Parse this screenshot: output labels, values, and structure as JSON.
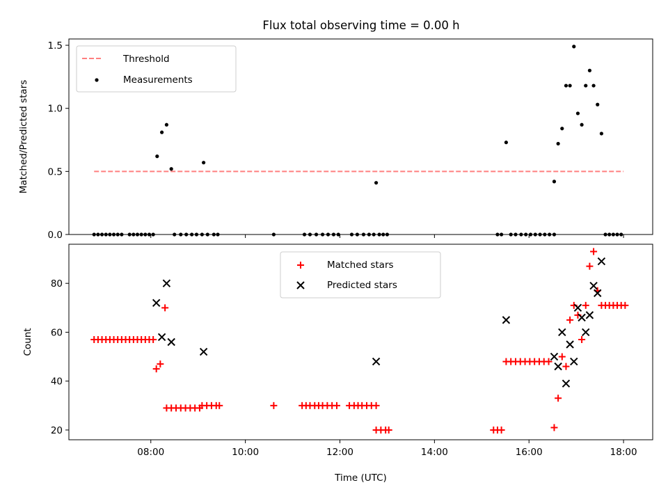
{
  "title": "Flux total observing time = 0.00 h",
  "chart_data": [
    {
      "type": "scatter",
      "ylabel": "Matched/Predicted stars",
      "ylim": [
        0,
        1.55
      ],
      "yticks": [
        0,
        0.5,
        1.0,
        1.5
      ],
      "ytick_labels": [
        "0.0",
        "0.5",
        "1.0",
        "1.5"
      ],
      "legend_position": "top-left",
      "threshold": {
        "name": "Threshold",
        "value": 0.5,
        "x_start": "06:48",
        "x_end": "18:00",
        "color": "#ff7f7f"
      },
      "series": [
        {
          "name": "Measurements",
          "color": "#000000",
          "marker": "dot",
          "points": [
            [
              "06:48",
              0
            ],
            [
              "06:53",
              0
            ],
            [
              "06:58",
              0
            ],
            [
              "07:03",
              0
            ],
            [
              "07:08",
              0
            ],
            [
              "07:13",
              0
            ],
            [
              "07:18",
              0
            ],
            [
              "07:23",
              0
            ],
            [
              "07:33",
              0
            ],
            [
              "07:38",
              0
            ],
            [
              "07:43",
              0
            ],
            [
              "07:48",
              0
            ],
            [
              "07:53",
              0
            ],
            [
              "07:58",
              0
            ],
            [
              "08:03",
              0
            ],
            [
              "08:08",
              0.62
            ],
            [
              "08:14",
              0.81
            ],
            [
              "08:20",
              0.87
            ],
            [
              "08:26",
              0.52
            ],
            [
              "08:30",
              0
            ],
            [
              "08:38",
              0
            ],
            [
              "08:45",
              0
            ],
            [
              "08:52",
              0
            ],
            [
              "08:58",
              0
            ],
            [
              "09:05",
              0
            ],
            [
              "09:12",
              0
            ],
            [
              "09:20",
              0
            ],
            [
              "09:25",
              0
            ],
            [
              "09:07",
              0.57
            ],
            [
              "10:36",
              0
            ],
            [
              "11:15",
              0
            ],
            [
              "11:22",
              0
            ],
            [
              "11:30",
              0
            ],
            [
              "11:38",
              0
            ],
            [
              "11:45",
              0
            ],
            [
              "11:52",
              0
            ],
            [
              "11:58",
              0
            ],
            [
              "12:15",
              0
            ],
            [
              "12:22",
              0
            ],
            [
              "12:30",
              0
            ],
            [
              "12:37",
              0
            ],
            [
              "12:43",
              0
            ],
            [
              "12:50",
              0
            ],
            [
              "12:55",
              0
            ],
            [
              "13:00",
              0
            ],
            [
              "12:46",
              0.41
            ],
            [
              "15:20",
              0
            ],
            [
              "15:25",
              0
            ],
            [
              "15:31",
              0.73
            ],
            [
              "15:37",
              0
            ],
            [
              "15:43",
              0
            ],
            [
              "15:50",
              0
            ],
            [
              "15:56",
              0
            ],
            [
              "16:02",
              0
            ],
            [
              "16:08",
              0
            ],
            [
              "16:14",
              0
            ],
            [
              "16:20",
              0
            ],
            [
              "16:26",
              0
            ],
            [
              "16:32",
              0
            ],
            [
              "16:32",
              0.42
            ],
            [
              "16:37",
              0.72
            ],
            [
              "16:42",
              0.84
            ],
            [
              "16:47",
              1.18
            ],
            [
              "16:52",
              1.18
            ],
            [
              "16:57",
              1.49
            ],
            [
              "17:02",
              0.96
            ],
            [
              "17:07",
              0.87
            ],
            [
              "17:12",
              1.18
            ],
            [
              "17:17",
              1.3
            ],
            [
              "17:22",
              1.18
            ],
            [
              "17:27",
              1.03
            ],
            [
              "17:32",
              0.8
            ],
            [
              "17:37",
              0
            ],
            [
              "17:42",
              0
            ],
            [
              "17:47",
              0
            ],
            [
              "17:52",
              0
            ],
            [
              "17:57",
              0
            ]
          ]
        }
      ]
    },
    {
      "type": "scatter",
      "xlabel": "Time (UTC)",
      "ylabel": "Count",
      "ylim": [
        16,
        96
      ],
      "yticks": [
        20,
        40,
        60,
        80
      ],
      "ytick_labels": [
        "20",
        "40",
        "60",
        "80"
      ],
      "xlim": [
        "06:16",
        "18:37"
      ],
      "xticks": [
        "08:00",
        "10:00",
        "12:00",
        "14:00",
        "16:00",
        "18:00"
      ],
      "legend_position": "top-center",
      "series": [
        {
          "name": "Matched stars",
          "color": "#ff0000",
          "marker": "plus",
          "points": [
            [
              "06:48",
              57
            ],
            [
              "06:53",
              57
            ],
            [
              "06:58",
              57
            ],
            [
              "07:03",
              57
            ],
            [
              "07:08",
              57
            ],
            [
              "07:13",
              57
            ],
            [
              "07:18",
              57
            ],
            [
              "07:23",
              57
            ],
            [
              "07:28",
              57
            ],
            [
              "07:33",
              57
            ],
            [
              "07:38",
              57
            ],
            [
              "07:43",
              57
            ],
            [
              "07:48",
              57
            ],
            [
              "07:53",
              57
            ],
            [
              "07:58",
              57
            ],
            [
              "08:03",
              57
            ],
            [
              "08:07",
              45
            ],
            [
              "08:12",
              47
            ],
            [
              "08:18",
              70
            ],
            [
              "08:20",
              29
            ],
            [
              "08:26",
              29
            ],
            [
              "08:32",
              29
            ],
            [
              "08:38",
              29
            ],
            [
              "08:44",
              29
            ],
            [
              "08:50",
              29
            ],
            [
              "08:56",
              29
            ],
            [
              "09:02",
              29
            ],
            [
              "09:05",
              30
            ],
            [
              "09:11",
              30
            ],
            [
              "09:17",
              30
            ],
            [
              "09:23",
              30
            ],
            [
              "09:27",
              30
            ],
            [
              "10:36",
              30
            ],
            [
              "11:12",
              30
            ],
            [
              "11:17",
              30
            ],
            [
              "11:22",
              30
            ],
            [
              "11:28",
              30
            ],
            [
              "11:33",
              30
            ],
            [
              "11:38",
              30
            ],
            [
              "11:44",
              30
            ],
            [
              "11:50",
              30
            ],
            [
              "11:56",
              30
            ],
            [
              "12:12",
              30
            ],
            [
              "12:18",
              30
            ],
            [
              "12:23",
              30
            ],
            [
              "12:28",
              30
            ],
            [
              "12:34",
              30
            ],
            [
              "12:40",
              30
            ],
            [
              "12:46",
              30
            ],
            [
              "12:46",
              20
            ],
            [
              "12:52",
              20
            ],
            [
              "12:58",
              20
            ],
            [
              "13:02",
              20
            ],
            [
              "15:15",
              20
            ],
            [
              "15:20",
              20
            ],
            [
              "15:25",
              20
            ],
            [
              "15:31",
              48
            ],
            [
              "15:37",
              48
            ],
            [
              "15:43",
              48
            ],
            [
              "15:49",
              48
            ],
            [
              "15:55",
              48
            ],
            [
              "16:01",
              48
            ],
            [
              "16:07",
              48
            ],
            [
              "16:13",
              48
            ],
            [
              "16:19",
              48
            ],
            [
              "16:25",
              48
            ],
            [
              "16:32",
              21
            ],
            [
              "16:37",
              33
            ],
            [
              "16:42",
              50
            ],
            [
              "16:47",
              46
            ],
            [
              "16:52",
              65
            ],
            [
              "16:57",
              71
            ],
            [
              "17:02",
              67
            ],
            [
              "17:07",
              57
            ],
            [
              "17:12",
              71
            ],
            [
              "17:17",
              87
            ],
            [
              "17:22",
              93
            ],
            [
              "17:27",
              77
            ],
            [
              "17:32",
              71
            ],
            [
              "17:37",
              71
            ],
            [
              "17:42",
              71
            ],
            [
              "17:47",
              71
            ],
            [
              "17:52",
              71
            ],
            [
              "17:57",
              71
            ],
            [
              "18:02",
              71
            ]
          ]
        },
        {
          "name": "Predicted stars",
          "color": "#000000",
          "marker": "x",
          "points": [
            [
              "08:07",
              72
            ],
            [
              "08:14",
              58
            ],
            [
              "08:20",
              80
            ],
            [
              "08:26",
              56
            ],
            [
              "09:07",
              52
            ],
            [
              "12:46",
              48
            ],
            [
              "15:31",
              65
            ],
            [
              "16:32",
              50
            ],
            [
              "16:37",
              46
            ],
            [
              "16:42",
              60
            ],
            [
              "16:47",
              39
            ],
            [
              "16:52",
              55
            ],
            [
              "16:57",
              48
            ],
            [
              "17:02",
              70
            ],
            [
              "17:07",
              66
            ],
            [
              "17:12",
              60
            ],
            [
              "17:17",
              67
            ],
            [
              "17:22",
              79
            ],
            [
              "17:27",
              76
            ],
            [
              "17:32",
              89
            ]
          ]
        }
      ]
    }
  ]
}
